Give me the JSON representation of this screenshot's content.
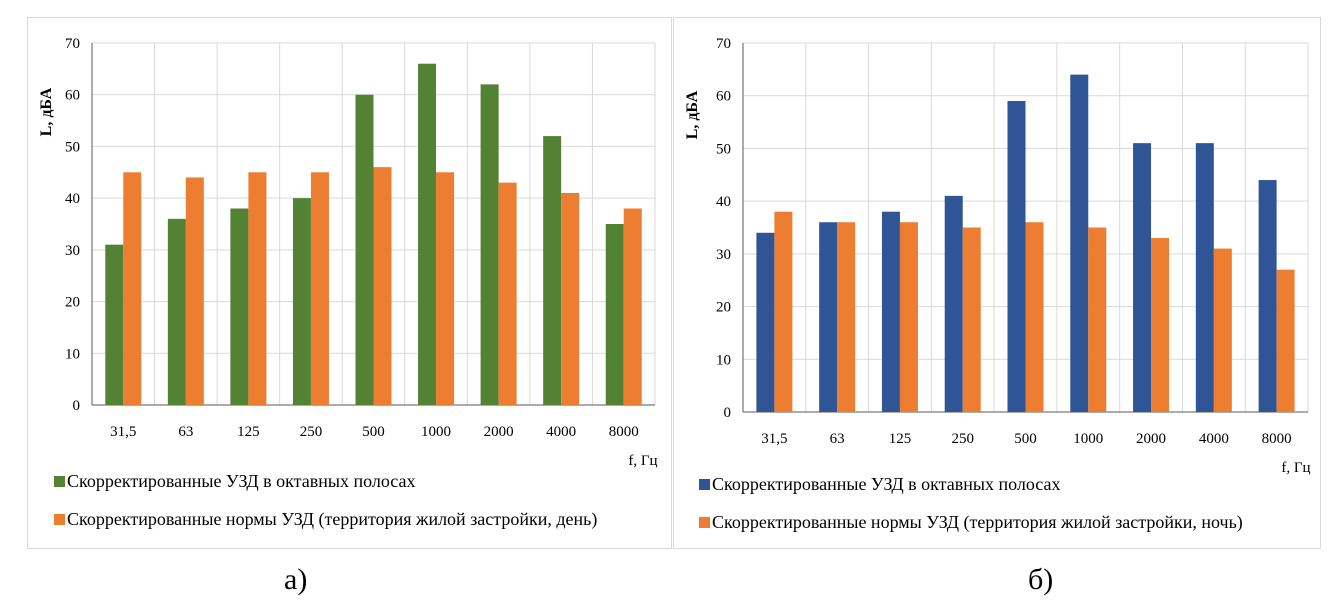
{
  "chart_data": [
    {
      "type": "bar",
      "panel_label": "а)",
      "categories": [
        "31,5",
        "63",
        "125",
        "250",
        "500",
        "1000",
        "2000",
        "4000",
        "8000"
      ],
      "series": [
        {
          "name": "Скорректированные УЗД в октавных полосах",
          "color": "#548235",
          "values": [
            31,
            36,
            38,
            40,
            60,
            66,
            62,
            52,
            35
          ]
        },
        {
          "name": "Скорректированные нормы УЗД (территория жилой застройки, день)",
          "color": "#ed7d31",
          "values": [
            45,
            44,
            45,
            45,
            46,
            45,
            43,
            41,
            38
          ]
        }
      ],
      "ylabel": "L, дБА",
      "xlabel": "f, Гц",
      "ylim": [
        0,
        70
      ],
      "yticks": [
        0,
        10,
        20,
        30,
        40,
        50,
        60,
        70
      ],
      "grid": true
    },
    {
      "type": "bar",
      "panel_label": "б)",
      "categories": [
        "31,5",
        "63",
        "125",
        "250",
        "500",
        "1000",
        "2000",
        "4000",
        "8000"
      ],
      "series": [
        {
          "name": "Скорректированные УЗД в октавных полосах",
          "color": "#2f5597",
          "values": [
            34,
            36,
            38,
            41,
            59,
            64,
            51,
            51,
            44
          ]
        },
        {
          "name": "Скорректированные нормы УЗД (территория жилой застройки, ночь)",
          "color": "#ed7d31",
          "values": [
            38,
            36,
            36,
            35,
            36,
            35,
            33,
            31,
            27
          ]
        }
      ],
      "ylabel": "L, дБА",
      "xlabel": "f, Гц",
      "ylim": [
        0,
        70
      ],
      "yticks": [
        0,
        10,
        20,
        30,
        40,
        50,
        60,
        70
      ],
      "grid": true
    }
  ]
}
